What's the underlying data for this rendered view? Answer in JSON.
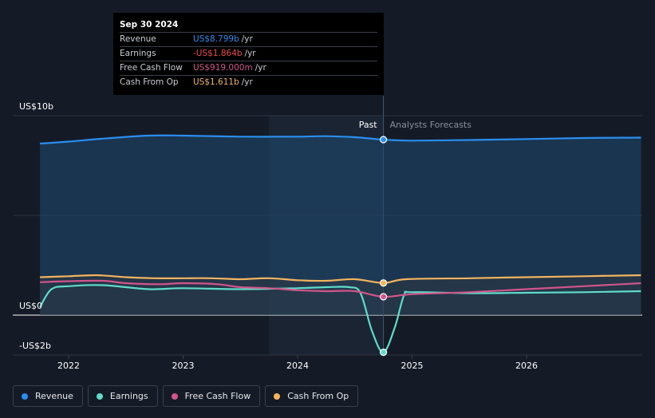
{
  "chart_data": {
    "type": "line",
    "y_ticks": [
      {
        "value": 10,
        "label": "US$10b"
      },
      {
        "value": 0,
        "label": "US$0"
      },
      {
        "value": -2,
        "label": "-US$2b"
      }
    ],
    "ylim": [
      -2,
      10
    ],
    "x_ticks": [
      {
        "value": 2022,
        "label": "2022"
      },
      {
        "value": 2023,
        "label": "2023"
      },
      {
        "value": 2024,
        "label": "2024"
      },
      {
        "value": 2025,
        "label": "2025"
      },
      {
        "value": 2026,
        "label": "2026"
      }
    ],
    "xlim": [
      2021.55,
      2027.0
    ],
    "divider_x": 2024.75,
    "past_label": "Past",
    "forecast_label": "Analysts Forecasts",
    "series": [
      {
        "name": "Revenue",
        "key": "revenue",
        "color": "#2a8ef0",
        "fill": true,
        "points": [
          [
            2021.75,
            8.6
          ],
          [
            2022.0,
            8.7
          ],
          [
            2022.3,
            8.85
          ],
          [
            2022.7,
            9.0
          ],
          [
            2023.0,
            9.0
          ],
          [
            2023.5,
            8.95
          ],
          [
            2024.0,
            8.95
          ],
          [
            2024.25,
            8.97
          ],
          [
            2024.5,
            8.92
          ],
          [
            2024.75,
            8.799
          ],
          [
            2025.0,
            8.75
          ],
          [
            2025.5,
            8.78
          ],
          [
            2026.0,
            8.83
          ],
          [
            2026.5,
            8.88
          ],
          [
            2027.0,
            8.9
          ]
        ]
      },
      {
        "name": "Earnings",
        "key": "earnings",
        "color": "#5fdcc9",
        "fill": false,
        "points": [
          [
            2021.75,
            0.4
          ],
          [
            2021.85,
            1.3
          ],
          [
            2022.0,
            1.45
          ],
          [
            2022.3,
            1.5
          ],
          [
            2022.7,
            1.3
          ],
          [
            2023.0,
            1.35
          ],
          [
            2023.5,
            1.3
          ],
          [
            2024.0,
            1.35
          ],
          [
            2024.25,
            1.4
          ],
          [
            2024.45,
            1.4
          ],
          [
            2024.55,
            1.1
          ],
          [
            2024.65,
            -0.8
          ],
          [
            2024.75,
            -1.864
          ],
          [
            2024.85,
            -0.6
          ],
          [
            2024.93,
            1.0
          ],
          [
            2025.0,
            1.15
          ],
          [
            2025.5,
            1.1
          ],
          [
            2026.0,
            1.12
          ],
          [
            2026.5,
            1.15
          ],
          [
            2027.0,
            1.2
          ]
        ]
      },
      {
        "name": "Free Cash Flow",
        "key": "free_cash_flow",
        "color": "#d1558a",
        "fill": false,
        "points": [
          [
            2021.75,
            1.65
          ],
          [
            2022.0,
            1.7
          ],
          [
            2022.3,
            1.72
          ],
          [
            2022.5,
            1.6
          ],
          [
            2022.8,
            1.55
          ],
          [
            2023.0,
            1.6
          ],
          [
            2023.3,
            1.55
          ],
          [
            2023.5,
            1.4
          ],
          [
            2023.75,
            1.35
          ],
          [
            2024.0,
            1.25
          ],
          [
            2024.25,
            1.2
          ],
          [
            2024.5,
            1.2
          ],
          [
            2024.75,
            0.919
          ],
          [
            2025.0,
            1.05
          ],
          [
            2025.5,
            1.15
          ],
          [
            2026.0,
            1.3
          ],
          [
            2026.5,
            1.45
          ],
          [
            2027.0,
            1.6
          ]
        ]
      },
      {
        "name": "Cash From Op",
        "key": "cash_from_op",
        "color": "#f2b45f",
        "fill": false,
        "points": [
          [
            2021.75,
            1.9
          ],
          [
            2022.0,
            1.95
          ],
          [
            2022.25,
            2.0
          ],
          [
            2022.5,
            1.9
          ],
          [
            2022.75,
            1.85
          ],
          [
            2023.0,
            1.85
          ],
          [
            2023.25,
            1.85
          ],
          [
            2023.5,
            1.8
          ],
          [
            2023.75,
            1.85
          ],
          [
            2024.0,
            1.75
          ],
          [
            2024.25,
            1.72
          ],
          [
            2024.5,
            1.8
          ],
          [
            2024.75,
            1.611
          ],
          [
            2024.95,
            1.8
          ],
          [
            2025.5,
            1.85
          ],
          [
            2026.0,
            1.9
          ],
          [
            2026.5,
            1.95
          ],
          [
            2027.0,
            2.0
          ]
        ]
      }
    ]
  },
  "tooltip": {
    "date": "Sep 30 2024",
    "rows": [
      {
        "label": "Revenue",
        "value": "US$8.799b",
        "unit": "/yr",
        "color": "#2a8ef0"
      },
      {
        "label": "Earnings",
        "value": "-US$1.864b",
        "unit": "/yr",
        "color": "#ef4b4b"
      },
      {
        "label": "Free Cash Flow",
        "value": "US$919.000m",
        "unit": "/yr",
        "color": "#d1558a"
      },
      {
        "label": "Cash From Op",
        "value": "US$1.611b",
        "unit": "/yr",
        "color": "#f2b45f"
      }
    ]
  },
  "legend": [
    {
      "label": "Revenue",
      "color": "#2a8ef0"
    },
    {
      "label": "Earnings",
      "color": "#5fdcc9"
    },
    {
      "label": "Free Cash Flow",
      "color": "#d1558a"
    },
    {
      "label": "Cash From Op",
      "color": "#f2b45f"
    }
  ]
}
